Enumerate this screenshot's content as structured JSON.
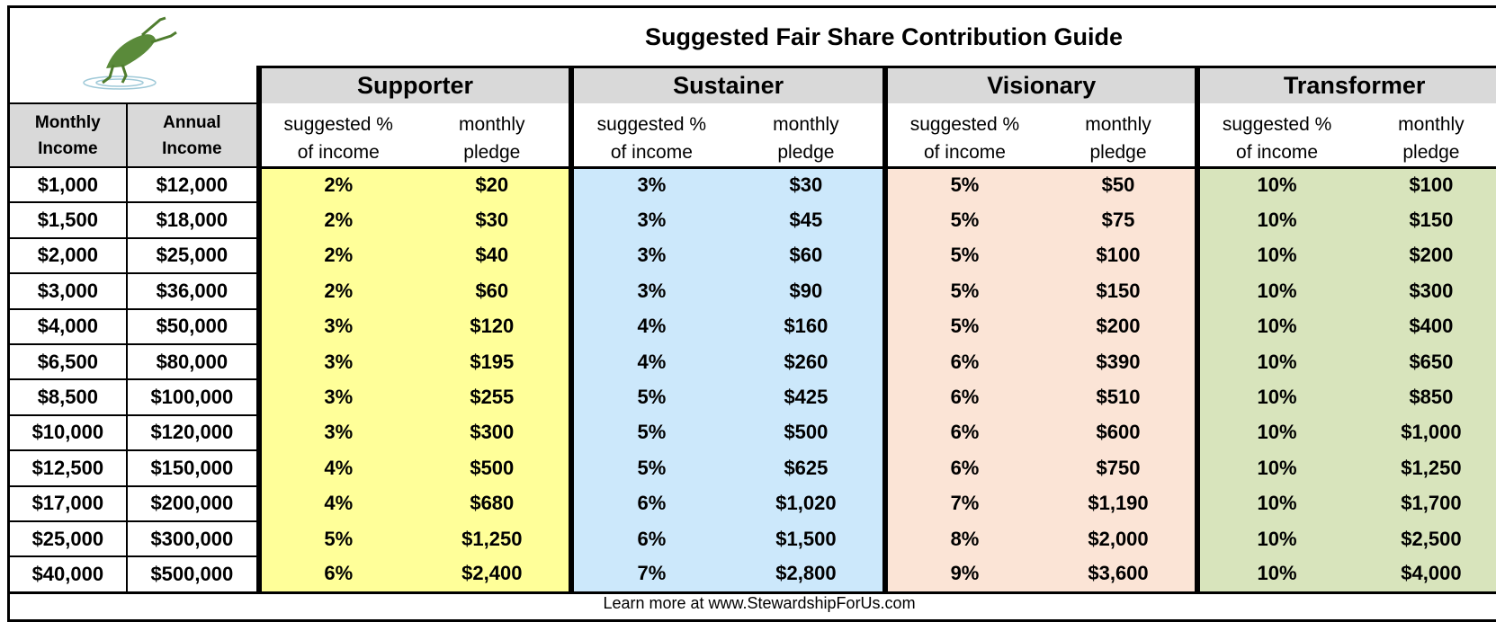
{
  "title": "Suggested Fair Share Contribution Guide",
  "table": {
    "income_headers": [
      [
        "Monthly",
        "Income"
      ],
      [
        "Annual",
        "Income"
      ]
    ],
    "tiers": [
      {
        "name": "Supporter",
        "color": "#ffff99",
        "columns": [
          [
            "suggested %",
            "of income"
          ],
          [
            "monthly",
            "pledge"
          ]
        ]
      },
      {
        "name": "Sustainer",
        "color": "#cce8fb",
        "columns": [
          [
            "suggested %",
            "of income"
          ],
          [
            "monthly",
            "pledge"
          ]
        ]
      },
      {
        "name": "Visionary",
        "color": "#fbe4d6",
        "columns": [
          [
            "suggested %",
            "of income"
          ],
          [
            "monthly",
            "pledge"
          ]
        ]
      },
      {
        "name": "Transformer",
        "color": "#d8e4bc",
        "columns": [
          [
            "suggested %",
            "of income"
          ],
          [
            "monthly",
            "pledge"
          ]
        ]
      }
    ],
    "rows": [
      [
        "$1,000",
        "$12,000",
        "2%",
        "$20",
        "3%",
        "$30",
        "5%",
        "$50",
        "10%",
        "$100"
      ],
      [
        "$1,500",
        "$18,000",
        "2%",
        "$30",
        "3%",
        "$45",
        "5%",
        "$75",
        "10%",
        "$150"
      ],
      [
        "$2,000",
        "$25,000",
        "2%",
        "$40",
        "3%",
        "$60",
        "5%",
        "$100",
        "10%",
        "$200"
      ],
      [
        "$3,000",
        "$36,000",
        "2%",
        "$60",
        "3%",
        "$90",
        "5%",
        "$150",
        "10%",
        "$300"
      ],
      [
        "$4,000",
        "$50,000",
        "3%",
        "$120",
        "4%",
        "$160",
        "5%",
        "$200",
        "10%",
        "$400"
      ],
      [
        "$6,500",
        "$80,000",
        "3%",
        "$195",
        "4%",
        "$260",
        "6%",
        "$390",
        "10%",
        "$650"
      ],
      [
        "$8,500",
        "$100,000",
        "3%",
        "$255",
        "5%",
        "$425",
        "6%",
        "$510",
        "10%",
        "$850"
      ],
      [
        "$10,000",
        "$120,000",
        "3%",
        "$300",
        "5%",
        "$500",
        "6%",
        "$600",
        "10%",
        "$1,000"
      ],
      [
        "$12,500",
        "$150,000",
        "4%",
        "$500",
        "5%",
        "$625",
        "6%",
        "$750",
        "10%",
        "$1,250"
      ],
      [
        "$17,000",
        "$200,000",
        "4%",
        "$680",
        "6%",
        "$1,020",
        "7%",
        "$1,190",
        "10%",
        "$1,700"
      ],
      [
        "$25,000",
        "$300,000",
        "5%",
        "$1,250",
        "6%",
        "$1,500",
        "8%",
        "$2,000",
        "10%",
        "$2,500"
      ],
      [
        "$40,000",
        "$500,000",
        "6%",
        "$2,400",
        "7%",
        "$2,800",
        "9%",
        "$3,600",
        "10%",
        "$4,000"
      ]
    ]
  },
  "footer": "Learn more at www.StewardshipForUs.com"
}
